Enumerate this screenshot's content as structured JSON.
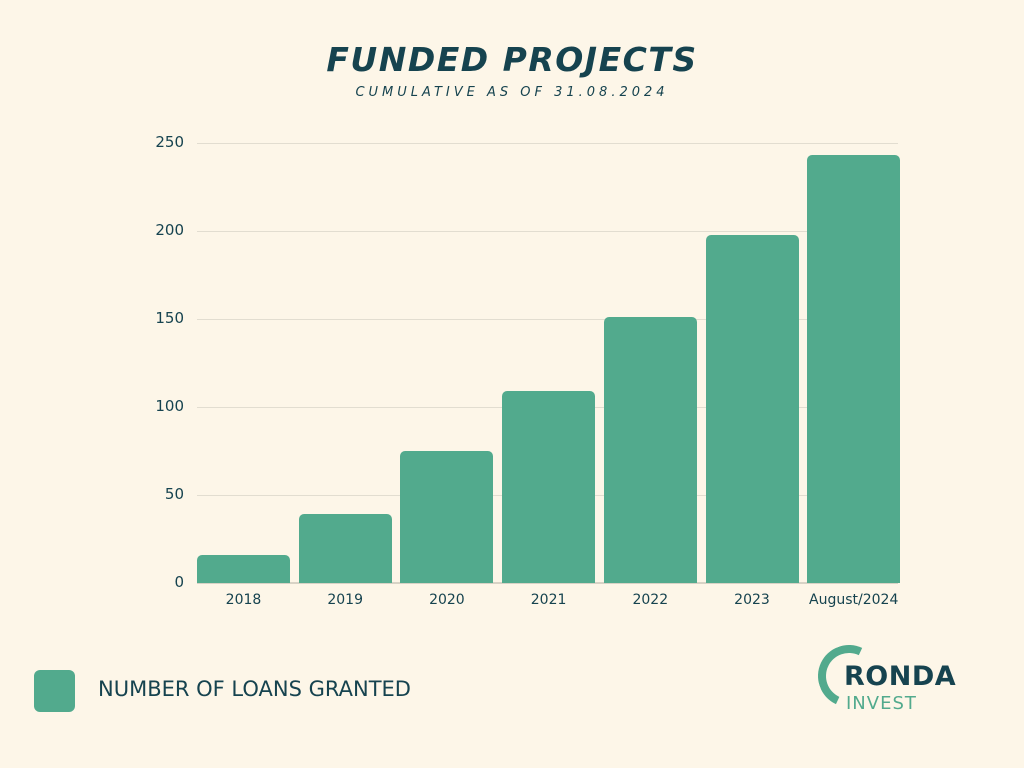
{
  "header": {
    "title": "FUNDED PROJECTS",
    "subtitle": "CUMULATIVE AS OF 31.08.2024"
  },
  "legend": {
    "label": "NUMBER OF LOANS GRANTED",
    "color": "#52aa8d"
  },
  "logo": {
    "primary": "RONDA",
    "secondary": "INVEST"
  },
  "colors": {
    "background": "#fdf6e8",
    "bar": "#52aa8d",
    "text": "#16434f"
  },
  "chart_data": {
    "type": "bar",
    "title": "FUNDED PROJECTS",
    "subtitle": "CUMULATIVE AS OF 31.08.2024",
    "categories": [
      "2018",
      "2019",
      "2020",
      "2021",
      "2022",
      "2023",
      "August/2024"
    ],
    "series": [
      {
        "name": "NUMBER OF LOANS GRANTED",
        "values": [
          16,
          39,
          75,
          109,
          151,
          198,
          243
        ]
      }
    ],
    "xlabel": "",
    "ylabel": "",
    "ylim": [
      0,
      250
    ],
    "yticks": [
      "0",
      "50",
      "100",
      "150",
      "200",
      "250"
    ],
    "grid": true,
    "legend_position": "bottom-left"
  }
}
